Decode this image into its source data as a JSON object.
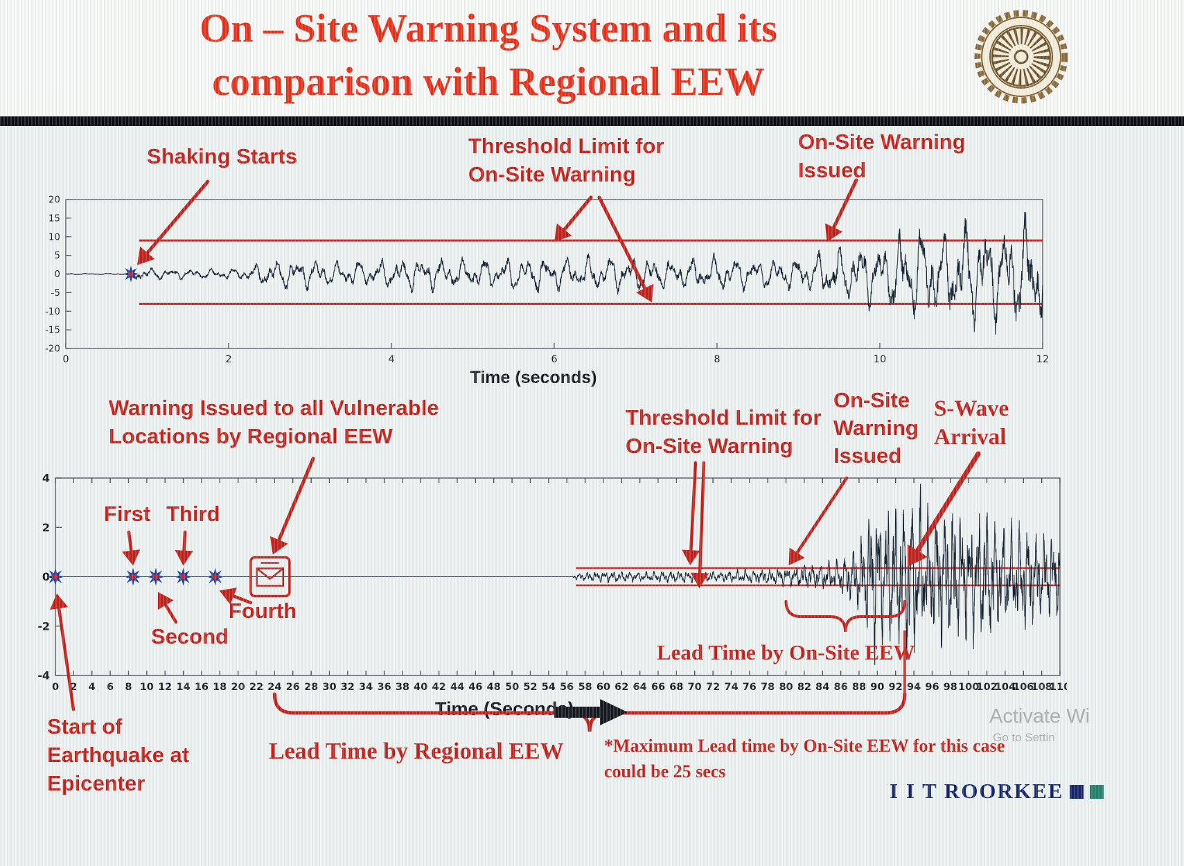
{
  "slide": {
    "title_line1": "On – Site Warning System and its",
    "title_line2": "comparison with Regional EEW"
  },
  "annotations_top": {
    "shaking": "Shaking Starts",
    "threshold_l1": "Threshold Limit for",
    "threshold_l2": "On-Site Warning",
    "issued_l1": "On-Site Warning",
    "issued_l2": "Issued"
  },
  "annotations_bottom": {
    "regional_l1": "Warning Issued to all Vulnerable",
    "regional_l2": "Locations by Regional EEW",
    "threshold_l1": "Threshold Limit for",
    "threshold_l2": "On-Site Warning",
    "issued_l1": "On-Site",
    "issued_l2": "Warning",
    "issued_l3": "Issued",
    "swave_l1": "S-Wave",
    "swave_l2": "Arrival",
    "lead_onsite": "Lead Time by On-Site EEW",
    "lead_regional": "Lead Time by Regional EEW",
    "start_l1": "Start of",
    "start_l2": "Earthquake at",
    "start_l3": "Epicenter",
    "footnote_l1": "*Maximum Lead time by On-Site EEW for this case",
    "footnote_l2": "could be 25 secs"
  },
  "footer": {
    "brand": "I I T ROORKEE",
    "watermark_l1": "Activate Wi",
    "watermark_l2": "Go to Settin"
  },
  "colors": {
    "title_red": "#e62f16",
    "annotation_red": "#c22019",
    "threshold_red": "#cf1f1f",
    "waveform_dark": "#192433",
    "star_blue": "#1b3e9e",
    "brand_navy": "#16246a"
  },
  "chart_data": [
    {
      "type": "line",
      "name": "on-site-accelerogram",
      "xlabel": "Time (seconds)",
      "xlim": [
        0,
        12
      ],
      "xticks": [
        0,
        2,
        4,
        6,
        8,
        10,
        12
      ],
      "ylim": [
        -20,
        20
      ],
      "yticks": [
        20,
        15,
        10,
        5,
        0,
        -5,
        -10,
        -15,
        -20
      ],
      "threshold_upper": 9,
      "threshold_lower": -8,
      "threshold_start_time": 0.9,
      "shaking_start_time": 0.8,
      "onsite_warning_time": 9.3,
      "amplitude_envelope": [
        [
          0,
          0.15
        ],
        [
          0.75,
          0.2
        ],
        [
          0.85,
          1.8
        ],
        [
          1.5,
          1.2
        ],
        [
          2.2,
          1.5
        ],
        [
          2.5,
          3.5
        ],
        [
          2.9,
          4.2
        ],
        [
          3.3,
          3.0
        ],
        [
          3.8,
          3.6
        ],
        [
          4.3,
          4.4
        ],
        [
          5.0,
          3.8
        ],
        [
          5.6,
          4.6
        ],
        [
          6.2,
          4.2
        ],
        [
          6.8,
          4.8
        ],
        [
          7.4,
          4.0
        ],
        [
          8.0,
          4.5
        ],
        [
          8.6,
          3.8
        ],
        [
          9.1,
          4.2
        ],
        [
          9.4,
          6.5
        ],
        [
          9.8,
          7.5
        ],
        [
          10.1,
          9.5
        ],
        [
          10.4,
          13.0
        ],
        [
          10.8,
          11.0
        ],
        [
          11.1,
          14.5
        ],
        [
          11.5,
          12.0
        ],
        [
          11.8,
          15.0
        ],
        [
          12.0,
          13.0
        ]
      ]
    },
    {
      "type": "line",
      "name": "regional-vs-onsite-seismogram",
      "xlabel": "Time (Seconds)",
      "xlim": [
        0,
        110
      ],
      "xticks": [
        0,
        2,
        4,
        6,
        8,
        10,
        12,
        14,
        16,
        18,
        20,
        22,
        24,
        26,
        28,
        30,
        32,
        34,
        36,
        38,
        40,
        42,
        44,
        46,
        48,
        50,
        52,
        54,
        56,
        58,
        60,
        62,
        64,
        66,
        68,
        70,
        72,
        74,
        76,
        78,
        80,
        82,
        84,
        86,
        88,
        90,
        92,
        94,
        96,
        98,
        100,
        102,
        104,
        106,
        108,
        110
      ],
      "ylim": [
        -4,
        4
      ],
      "yticks": [
        4,
        2,
        0,
        -2,
        -4
      ],
      "threshold_upper": 0.35,
      "threshold_lower": -0.35,
      "threshold_start_time": 57,
      "p_wave_detections": [
        {
          "label": "Start",
          "time": 0
        },
        {
          "label": "First",
          "time": 8.5
        },
        {
          "label": "Second",
          "time": 11
        },
        {
          "label": "Third",
          "time": 14
        },
        {
          "label": "Fourth",
          "time": 17.5
        }
      ],
      "regional_warning_time": 23.5,
      "onsite_warning_time": 80,
      "s_wave_arrival_time": 93,
      "lead_time_regional_span": [
        24,
        93
      ],
      "lead_time_onsite_span": [
        80,
        93
      ],
      "max_onsite_lead_secs": 25,
      "amplitude_envelope": [
        [
          0,
          0
        ],
        [
          56.5,
          0
        ],
        [
          57,
          0.12
        ],
        [
          60,
          0.22
        ],
        [
          64,
          0.18
        ],
        [
          68,
          0.24
        ],
        [
          72,
          0.2
        ],
        [
          76,
          0.26
        ],
        [
          79,
          0.3
        ],
        [
          82,
          0.45
        ],
        [
          85,
          0.55
        ],
        [
          87,
          0.9
        ],
        [
          88.5,
          1.8
        ],
        [
          90,
          3.1
        ],
        [
          92,
          2.5
        ],
        [
          94,
          3.2
        ],
        [
          96,
          2.3
        ],
        [
          98,
          2.9
        ],
        [
          100,
          2.1
        ],
        [
          102,
          2.6
        ],
        [
          104,
          1.8
        ],
        [
          106,
          2.1
        ],
        [
          108,
          1.5
        ],
        [
          110,
          1.7
        ]
      ]
    }
  ]
}
